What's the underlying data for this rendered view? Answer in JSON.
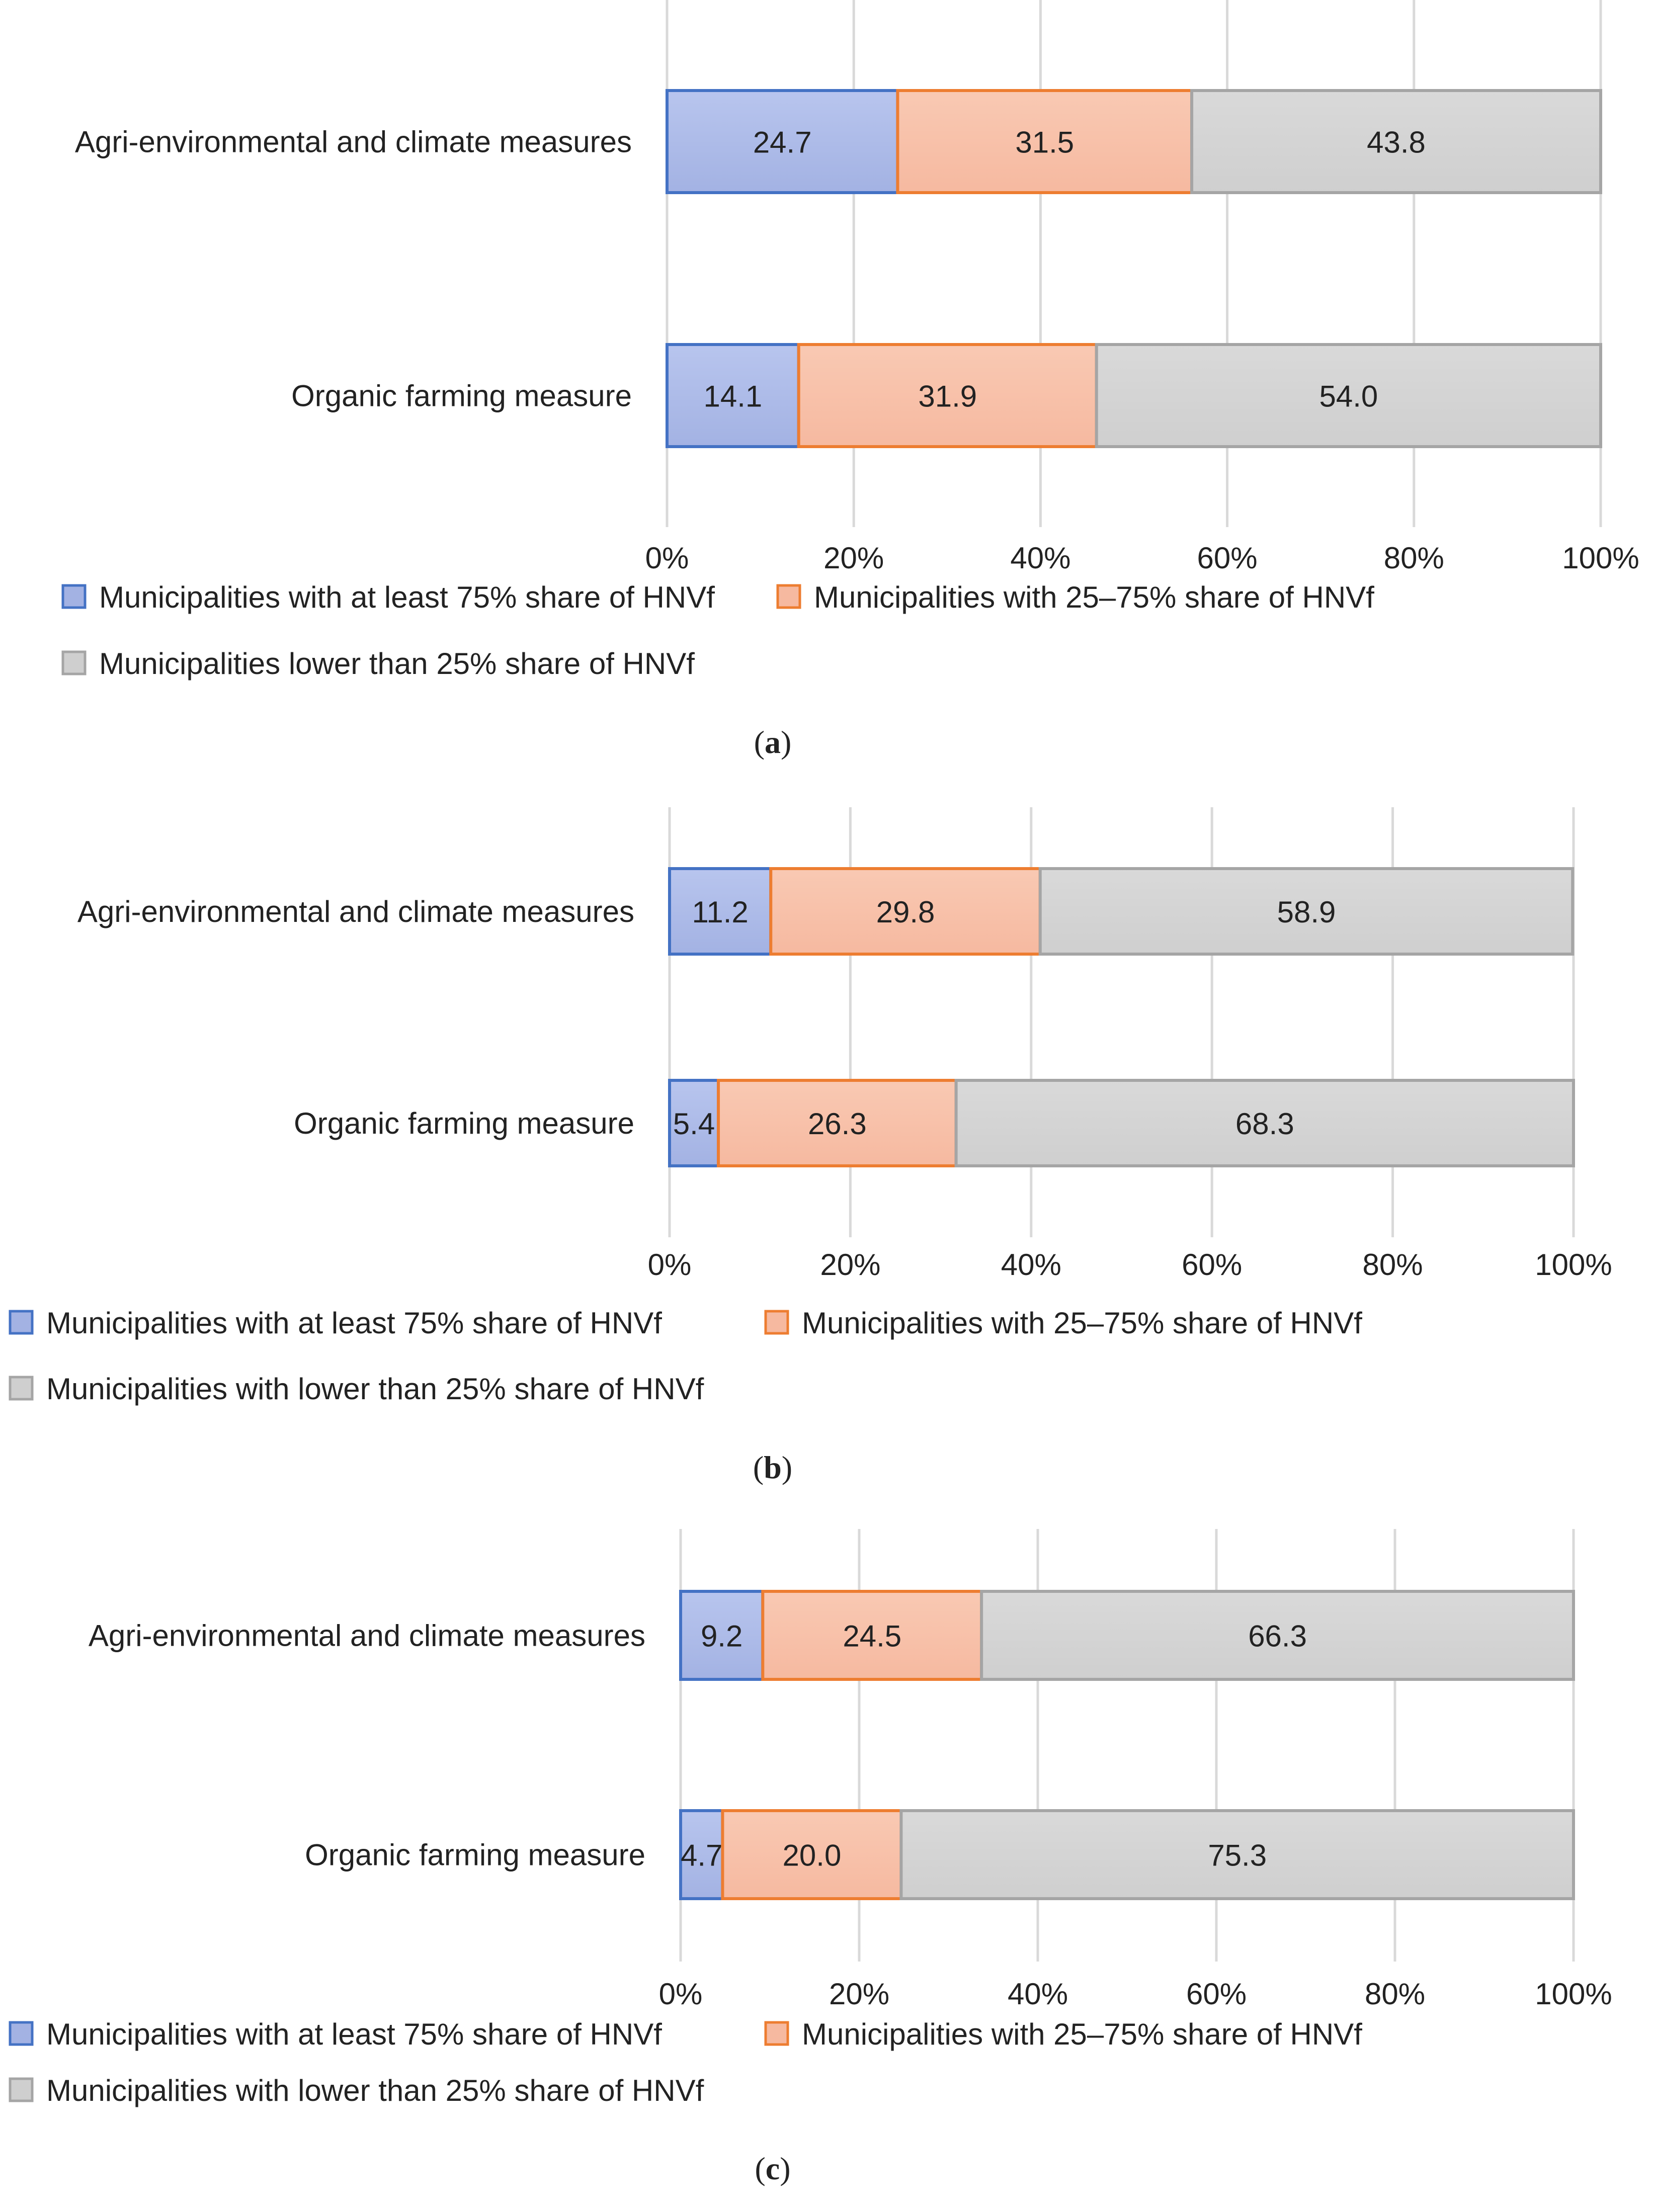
{
  "chart_data": [
    {
      "type": "bar",
      "orientation": "horizontal",
      "stacked": true,
      "panel_label": "a",
      "categories": [
        "Agri-environmental and climate measures",
        "Organic farming measure"
      ],
      "series": [
        {
          "name": "Municipalities with at least 75% share of HNVf",
          "values": [
            24.7,
            14.1
          ],
          "labels": [
            "24.7",
            "14.1"
          ]
        },
        {
          "name": "Municipalities with 25–75% share of HNVf",
          "values": [
            31.5,
            31.9
          ],
          "labels": [
            "31.5",
            "31.9"
          ]
        },
        {
          "name": "Municipalities lower than 25% share of HNVf",
          "values": [
            43.8,
            54.0
          ],
          "labels": [
            "43.8",
            "54.0"
          ]
        }
      ],
      "xlim": [
        0,
        100
      ],
      "ticks": [
        "0%",
        "20%",
        "40%",
        "60%",
        "80%",
        "100%"
      ],
      "grid": true,
      "legend": "bottom"
    },
    {
      "type": "bar",
      "orientation": "horizontal",
      "stacked": true,
      "panel_label": "b",
      "categories": [
        "Agri-environmental and climate measures",
        "Organic farming measure"
      ],
      "series": [
        {
          "name": "Municipalities with at least 75% share of HNVf",
          "values": [
            11.2,
            5.4
          ],
          "labels": [
            "11.2",
            "5.4"
          ]
        },
        {
          "name": "Municipalities with 25–75% share of HNVf",
          "values": [
            29.8,
            26.3
          ],
          "labels": [
            "29.8",
            "26.3"
          ]
        },
        {
          "name": "Municipalities with lower than 25% share of HNVf",
          "values": [
            58.9,
            68.3
          ],
          "labels": [
            "58.9",
            "68.3"
          ]
        }
      ],
      "xlim": [
        0,
        100
      ],
      "ticks": [
        "0%",
        "20%",
        "40%",
        "60%",
        "80%",
        "100%"
      ],
      "grid": true,
      "legend": "bottom"
    },
    {
      "type": "bar",
      "orientation": "horizontal",
      "stacked": true,
      "panel_label": "c",
      "categories": [
        "Agri-environmental and climate measures",
        "Organic farming measure"
      ],
      "series": [
        {
          "name": "Municipalities with at least 75% share of HNVf",
          "values": [
            9.2,
            4.7
          ],
          "labels": [
            "9.2",
            "4.7"
          ]
        },
        {
          "name": "Municipalities with 25–75% share of HNVf",
          "values": [
            24.5,
            20.0
          ],
          "labels": [
            "24.5",
            "20.0"
          ]
        },
        {
          "name": "Municipalities with lower than 25% share of HNVf",
          "values": [
            66.3,
            75.3
          ],
          "labels": [
            "66.3",
            "75.3"
          ]
        }
      ],
      "xlim": [
        0,
        100
      ],
      "ticks": [
        "0%",
        "20%",
        "40%",
        "60%",
        "80%",
        "100%"
      ],
      "grid": true,
      "legend": "bottom"
    }
  ],
  "colors": {
    "series_fill": [
      "#a3b2e3",
      "#f6b9a0",
      "#cfcfcf"
    ],
    "series_fill_light": [
      "#b8c5ee",
      "#f9c9b3",
      "#d9d9d9"
    ],
    "series_stroke": [
      "#4472c4",
      "#ed7d31",
      "#a5a5a5"
    ],
    "grid": "#d9d9d9",
    "tick_text": "#595959",
    "text": "#222222"
  }
}
